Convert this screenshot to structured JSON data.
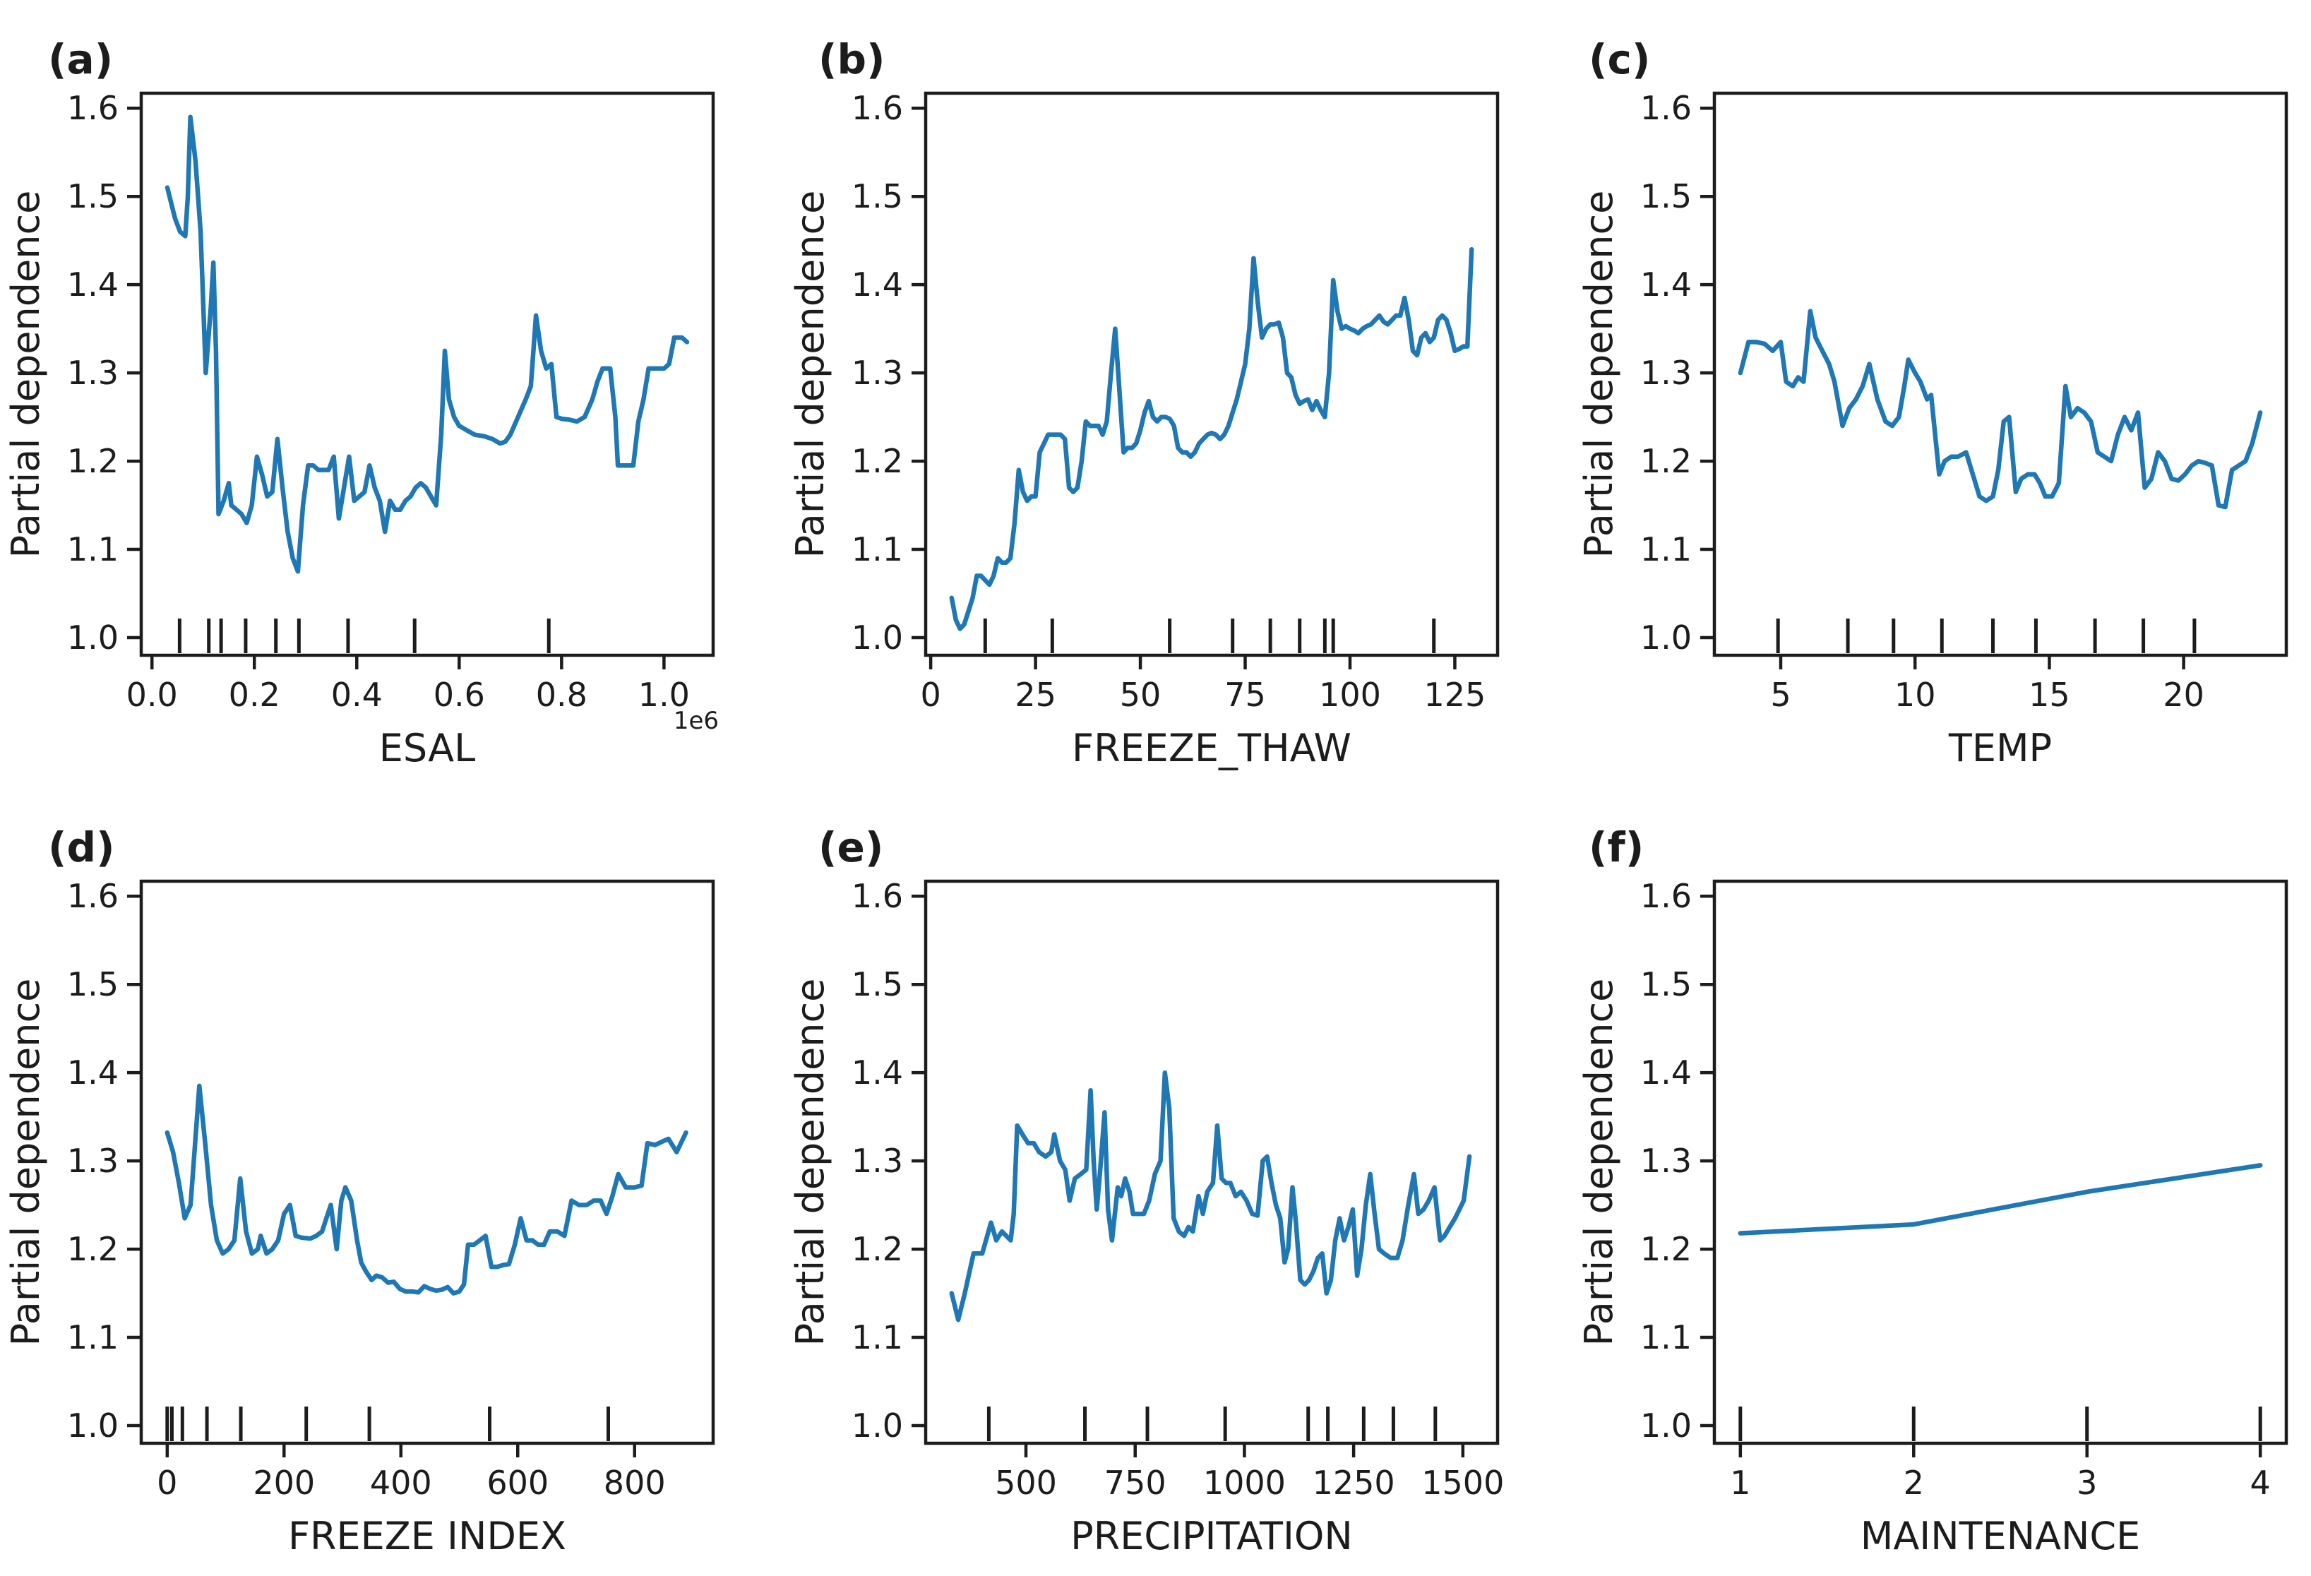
{
  "figure": {
    "background": "#ffffff",
    "line_color": "#1f77b4",
    "axis_color": "#1c1c1c",
    "ylabel": "Partial dependence",
    "ylim": [
      0.98,
      1.617
    ],
    "yticks": [
      1.0,
      1.1,
      1.2,
      1.3,
      1.4,
      1.5,
      1.6
    ],
    "ytick_labels": [
      "1.0",
      "1.1",
      "1.2",
      "1.3",
      "1.4",
      "1.5",
      "1.6"
    ]
  },
  "chart_data": [
    {
      "type": "line",
      "panel_label": "(a)",
      "xlabel": "ESAL",
      "x_offset_text": "1e6",
      "xlim": [
        -0.021,
        1.096
      ],
      "xticks": [
        0.0,
        0.2,
        0.4,
        0.6,
        0.8,
        1.0
      ],
      "xtick_labels": [
        "0.0",
        "0.2",
        "0.4",
        "0.6",
        "0.8",
        "1.0"
      ],
      "x": [
        0.03,
        0.045,
        0.055,
        0.065,
        0.07,
        0.075,
        0.085,
        0.095,
        0.105,
        0.115,
        0.12,
        0.125,
        0.13,
        0.14,
        0.15,
        0.155,
        0.165,
        0.175,
        0.185,
        0.195,
        0.205,
        0.215,
        0.225,
        0.235,
        0.245,
        0.255,
        0.265,
        0.275,
        0.285,
        0.295,
        0.305,
        0.315,
        0.325,
        0.335,
        0.345,
        0.355,
        0.365,
        0.375,
        0.385,
        0.395,
        0.405,
        0.415,
        0.425,
        0.435,
        0.445,
        0.455,
        0.465,
        0.475,
        0.485,
        0.495,
        0.505,
        0.515,
        0.525,
        0.535,
        0.545,
        0.555,
        0.565,
        0.572,
        0.58,
        0.59,
        0.6,
        0.615,
        0.63,
        0.65,
        0.665,
        0.68,
        0.69,
        0.7,
        0.715,
        0.73,
        0.74,
        0.75,
        0.76,
        0.77,
        0.78,
        0.79,
        0.8,
        0.815,
        0.83,
        0.845,
        0.86,
        0.87,
        0.88,
        0.895,
        0.905,
        0.91,
        0.925,
        0.94,
        0.95,
        0.96,
        0.97,
        0.985,
        1.0,
        1.01,
        1.02,
        1.035,
        1.045
      ],
      "y": [
        1.51,
        1.475,
        1.46,
        1.455,
        1.5,
        1.59,
        1.54,
        1.46,
        1.3,
        1.375,
        1.425,
        1.325,
        1.14,
        1.155,
        1.175,
        1.15,
        1.145,
        1.14,
        1.13,
        1.15,
        1.205,
        1.185,
        1.16,
        1.165,
        1.225,
        1.17,
        1.12,
        1.09,
        1.075,
        1.15,
        1.195,
        1.195,
        1.19,
        1.19,
        1.19,
        1.205,
        1.135,
        1.17,
        1.205,
        1.155,
        1.16,
        1.165,
        1.195,
        1.17,
        1.155,
        1.12,
        1.155,
        1.145,
        1.145,
        1.155,
        1.16,
        1.17,
        1.175,
        1.17,
        1.16,
        1.15,
        1.23,
        1.325,
        1.27,
        1.25,
        1.24,
        1.235,
        1.23,
        1.228,
        1.225,
        1.22,
        1.222,
        1.23,
        1.25,
        1.27,
        1.285,
        1.365,
        1.325,
        1.305,
        1.31,
        1.25,
        1.248,
        1.247,
        1.245,
        1.25,
        1.27,
        1.29,
        1.305,
        1.305,
        1.25,
        1.195,
        1.195,
        1.195,
        1.245,
        1.27,
        1.305,
        1.305,
        1.305,
        1.31,
        1.34,
        1.34,
        1.335
      ],
      "rug_x": [
        0.054,
        0.111,
        0.135,
        0.183,
        0.242,
        0.287,
        0.383,
        0.513,
        0.775
      ]
    },
    {
      "type": "line",
      "panel_label": "(b)",
      "xlabel": "FREEZE_THAW",
      "x_offset_text": "",
      "xlim": [
        -1.2,
        135.2
      ],
      "xticks": [
        0,
        25,
        50,
        75,
        100,
        125
      ],
      "xtick_labels": [
        "0",
        "25",
        "50",
        "75",
        "100",
        "125"
      ],
      "x": [
        5,
        6,
        7,
        8,
        9,
        10,
        11,
        12,
        13,
        14,
        15,
        16,
        17,
        18,
        19,
        20,
        21,
        22,
        23,
        24,
        25,
        26,
        27,
        28,
        29,
        30,
        31,
        32,
        33,
        34,
        35,
        36,
        37,
        38,
        39,
        40,
        41,
        42,
        43,
        44,
        45,
        46,
        47,
        48,
        49,
        50,
        51,
        52,
        53,
        54,
        55,
        56,
        57,
        58,
        59,
        60,
        61,
        62,
        63,
        64,
        65,
        66,
        67,
        68,
        69,
        70,
        71,
        72,
        73,
        74,
        75,
        76,
        77,
        78,
        79,
        80,
        81,
        82,
        83,
        84,
        85,
        86,
        87,
        88,
        89,
        90,
        91,
        92,
        93,
        94,
        95,
        96,
        97,
        98,
        99,
        100,
        101,
        102,
        103,
        104,
        105,
        106,
        107,
        108,
        109,
        110,
        111,
        112,
        113,
        114,
        115,
        116,
        117,
        118,
        119,
        120,
        121,
        122,
        123,
        124,
        125,
        126,
        127,
        128,
        129
      ],
      "y": [
        1.045,
        1.02,
        1.01,
        1.015,
        1.03,
        1.045,
        1.07,
        1.07,
        1.065,
        1.06,
        1.07,
        1.09,
        1.085,
        1.085,
        1.09,
        1.13,
        1.19,
        1.165,
        1.155,
        1.16,
        1.16,
        1.21,
        1.22,
        1.23,
        1.23,
        1.23,
        1.23,
        1.225,
        1.17,
        1.165,
        1.17,
        1.2,
        1.245,
        1.24,
        1.24,
        1.24,
        1.23,
        1.245,
        1.3,
        1.35,
        1.28,
        1.21,
        1.215,
        1.215,
        1.22,
        1.235,
        1.255,
        1.268,
        1.25,
        1.245,
        1.25,
        1.25,
        1.248,
        1.24,
        1.215,
        1.21,
        1.21,
        1.205,
        1.21,
        1.22,
        1.225,
        1.23,
        1.232,
        1.23,
        1.225,
        1.23,
        1.24,
        1.255,
        1.27,
        1.29,
        1.31,
        1.35,
        1.43,
        1.38,
        1.34,
        1.35,
        1.355,
        1.355,
        1.357,
        1.34,
        1.3,
        1.295,
        1.275,
        1.265,
        1.268,
        1.27,
        1.258,
        1.268,
        1.258,
        1.25,
        1.3,
        1.405,
        1.37,
        1.35,
        1.353,
        1.35,
        1.348,
        1.345,
        1.35,
        1.353,
        1.355,
        1.36,
        1.365,
        1.358,
        1.355,
        1.36,
        1.365,
        1.365,
        1.385,
        1.36,
        1.325,
        1.32,
        1.34,
        1.345,
        1.335,
        1.34,
        1.36,
        1.365,
        1.36,
        1.345,
        1.325,
        1.327,
        1.33,
        1.33,
        1.44
      ],
      "rug_x": [
        13,
        29,
        57,
        72,
        81,
        88,
        94,
        96,
        120
      ]
    },
    {
      "type": "line",
      "panel_label": "(c)",
      "xlabel": "TEMP",
      "x_offset_text": "",
      "xlim": [
        2.53,
        23.82
      ],
      "xticks": [
        5,
        10,
        15,
        20
      ],
      "xtick_labels": [
        "5",
        "10",
        "15",
        "20"
      ],
      "x": [
        3.5,
        3.8,
        4.1,
        4.4,
        4.7,
        5.0,
        5.2,
        5.45,
        5.65,
        5.85,
        6.1,
        6.3,
        6.55,
        6.8,
        7.0,
        7.3,
        7.55,
        7.8,
        8.05,
        8.3,
        8.6,
        8.9,
        9.15,
        9.4,
        9.6,
        9.75,
        10.0,
        10.2,
        10.45,
        10.6,
        10.9,
        11.1,
        11.35,
        11.6,
        11.9,
        12.15,
        12.4,
        12.65,
        12.9,
        13.1,
        13.3,
        13.5,
        13.75,
        13.95,
        14.2,
        14.45,
        14.65,
        14.85,
        15.1,
        15.35,
        15.6,
        15.8,
        16.05,
        16.3,
        16.55,
        16.8,
        17.05,
        17.3,
        17.55,
        17.8,
        18.05,
        18.3,
        18.55,
        18.8,
        19.05,
        19.3,
        19.55,
        19.8,
        20.05,
        20.3,
        20.55,
        20.8,
        21.05,
        21.3,
        21.55,
        21.8,
        22.05,
        22.3,
        22.55,
        22.85
      ],
      "y": [
        1.3,
        1.335,
        1.335,
        1.333,
        1.325,
        1.335,
        1.29,
        1.285,
        1.295,
        1.29,
        1.37,
        1.34,
        1.325,
        1.31,
        1.29,
        1.24,
        1.26,
        1.27,
        1.285,
        1.31,
        1.27,
        1.245,
        1.24,
        1.25,
        1.285,
        1.315,
        1.3,
        1.29,
        1.27,
        1.275,
        1.185,
        1.2,
        1.205,
        1.205,
        1.21,
        1.185,
        1.16,
        1.155,
        1.16,
        1.19,
        1.245,
        1.25,
        1.165,
        1.18,
        1.185,
        1.185,
        1.175,
        1.16,
        1.16,
        1.175,
        1.285,
        1.25,
        1.26,
        1.255,
        1.245,
        1.21,
        1.205,
        1.2,
        1.23,
        1.25,
        1.235,
        1.255,
        1.17,
        1.18,
        1.21,
        1.2,
        1.18,
        1.178,
        1.185,
        1.195,
        1.2,
        1.198,
        1.195,
        1.15,
        1.148,
        1.19,
        1.195,
        1.2,
        1.22,
        1.255
      ],
      "rug_x": [
        4.9,
        7.5,
        9.2,
        11.0,
        12.9,
        14.5,
        16.7,
        18.5,
        20.4
      ]
    },
    {
      "type": "line",
      "panel_label": "(d)",
      "xlabel": "FREEZE  INDEX",
      "x_offset_text": "",
      "xlim": [
        -44.5,
        934.5
      ],
      "xticks": [
        0,
        200,
        400,
        600,
        800
      ],
      "xtick_labels": [
        "0",
        "200",
        "400",
        "600",
        "800"
      ],
      "x": [
        0,
        10,
        20,
        30,
        40,
        55,
        65,
        75,
        85,
        95,
        105,
        115,
        125,
        135,
        145,
        155,
        160,
        170,
        180,
        190,
        200,
        210,
        220,
        230,
        245,
        255,
        265,
        275,
        280,
        290,
        298,
        305,
        315,
        325,
        332,
        340,
        350,
        358,
        368,
        378,
        388,
        398,
        408,
        420,
        430,
        440,
        450,
        460,
        470,
        480,
        490,
        500,
        508,
        515,
        525,
        535,
        545,
        555,
        565,
        575,
        585,
        595,
        605,
        615,
        625,
        635,
        645,
        655,
        668,
        680,
        692,
        705,
        718,
        730,
        742,
        752,
        762,
        772,
        785,
        800,
        812,
        822,
        835,
        848,
        858,
        872,
        888
      ],
      "y": [
        1.332,
        1.31,
        1.275,
        1.235,
        1.25,
        1.385,
        1.32,
        1.25,
        1.21,
        1.195,
        1.2,
        1.21,
        1.28,
        1.22,
        1.195,
        1.2,
        1.215,
        1.195,
        1.2,
        1.21,
        1.24,
        1.25,
        1.215,
        1.213,
        1.212,
        1.215,
        1.22,
        1.24,
        1.25,
        1.2,
        1.255,
        1.27,
        1.255,
        1.21,
        1.185,
        1.175,
        1.165,
        1.17,
        1.168,
        1.162,
        1.163,
        1.155,
        1.152,
        1.152,
        1.151,
        1.158,
        1.155,
        1.153,
        1.154,
        1.157,
        1.15,
        1.152,
        1.16,
        1.205,
        1.205,
        1.21,
        1.215,
        1.18,
        1.18,
        1.182,
        1.183,
        1.205,
        1.235,
        1.21,
        1.21,
        1.205,
        1.205,
        1.22,
        1.22,
        1.215,
        1.255,
        1.25,
        1.25,
        1.255,
        1.255,
        1.24,
        1.26,
        1.285,
        1.27,
        1.27,
        1.272,
        1.32,
        1.318,
        1.322,
        1.325,
        1.31,
        1.332
      ],
      "rug_x": [
        0,
        8,
        26,
        68,
        126,
        238,
        346,
        552,
        755
      ]
    },
    {
      "type": "line",
      "panel_label": "(e)",
      "xlabel": "PRECIPITATION",
      "x_offset_text": "",
      "xlim": [
        270.5,
        1579.5
      ],
      "xticks": [
        500,
        750,
        1000,
        1250,
        1500
      ],
      "xtick_labels": [
        "500",
        "750",
        "1000",
        "1250",
        "1500"
      ],
      "x": [
        330,
        345,
        360,
        380,
        400,
        420,
        432,
        445,
        455,
        465,
        472,
        480,
        492,
        505,
        518,
        530,
        545,
        558,
        565,
        578,
        590,
        600,
        612,
        625,
        638,
        648,
        655,
        662,
        670,
        680,
        688,
        697,
        710,
        718,
        727,
        737,
        745,
        757,
        770,
        782,
        795,
        808,
        818,
        828,
        838,
        850,
        862,
        872,
        882,
        895,
        905,
        915,
        928,
        938,
        948,
        958,
        968,
        980,
        992,
        1005,
        1018,
        1030,
        1042,
        1052,
        1062,
        1072,
        1082,
        1092,
        1100,
        1110,
        1118,
        1128,
        1138,
        1148,
        1158,
        1168,
        1178,
        1188,
        1198,
        1208,
        1218,
        1228,
        1238,
        1248,
        1258,
        1268,
        1278,
        1288,
        1298,
        1308,
        1320,
        1335,
        1350,
        1362,
        1375,
        1388,
        1398,
        1410,
        1422,
        1435,
        1448,
        1458,
        1470,
        1482,
        1492,
        1502,
        1515
      ],
      "y": [
        1.15,
        1.12,
        1.15,
        1.195,
        1.195,
        1.23,
        1.21,
        1.22,
        1.215,
        1.21,
        1.24,
        1.34,
        1.33,
        1.32,
        1.32,
        1.31,
        1.305,
        1.31,
        1.33,
        1.3,
        1.29,
        1.255,
        1.28,
        1.285,
        1.29,
        1.38,
        1.3,
        1.245,
        1.29,
        1.355,
        1.245,
        1.21,
        1.27,
        1.26,
        1.28,
        1.265,
        1.24,
        1.24,
        1.24,
        1.255,
        1.285,
        1.3,
        1.4,
        1.36,
        1.235,
        1.22,
        1.215,
        1.225,
        1.22,
        1.26,
        1.24,
        1.265,
        1.275,
        1.34,
        1.28,
        1.275,
        1.275,
        1.26,
        1.265,
        1.255,
        1.24,
        1.238,
        1.3,
        1.305,
        1.275,
        1.25,
        1.235,
        1.185,
        1.2,
        1.27,
        1.23,
        1.165,
        1.16,
        1.165,
        1.175,
        1.19,
        1.195,
        1.15,
        1.165,
        1.21,
        1.235,
        1.21,
        1.225,
        1.245,
        1.17,
        1.2,
        1.25,
        1.285,
        1.24,
        1.2,
        1.195,
        1.19,
        1.19,
        1.21,
        1.25,
        1.285,
        1.24,
        1.245,
        1.255,
        1.27,
        1.21,
        1.215,
        1.225,
        1.235,
        1.245,
        1.255,
        1.305
      ],
      "rug_x": [
        415,
        635,
        778,
        956,
        1146,
        1191,
        1273,
        1341,
        1437
      ]
    },
    {
      "type": "line",
      "panel_label": "(f)",
      "xlabel": "MAINTENANCE",
      "x_offset_text": "",
      "xlim": [
        0.85,
        4.15
      ],
      "xticks": [
        1,
        2,
        3,
        4
      ],
      "xtick_labels": [
        "1",
        "2",
        "3",
        "4"
      ],
      "x": [
        1,
        2,
        3,
        4
      ],
      "y": [
        1.218,
        1.228,
        1.265,
        1.295
      ],
      "rug_x": [
        1,
        2,
        3,
        4
      ]
    }
  ]
}
